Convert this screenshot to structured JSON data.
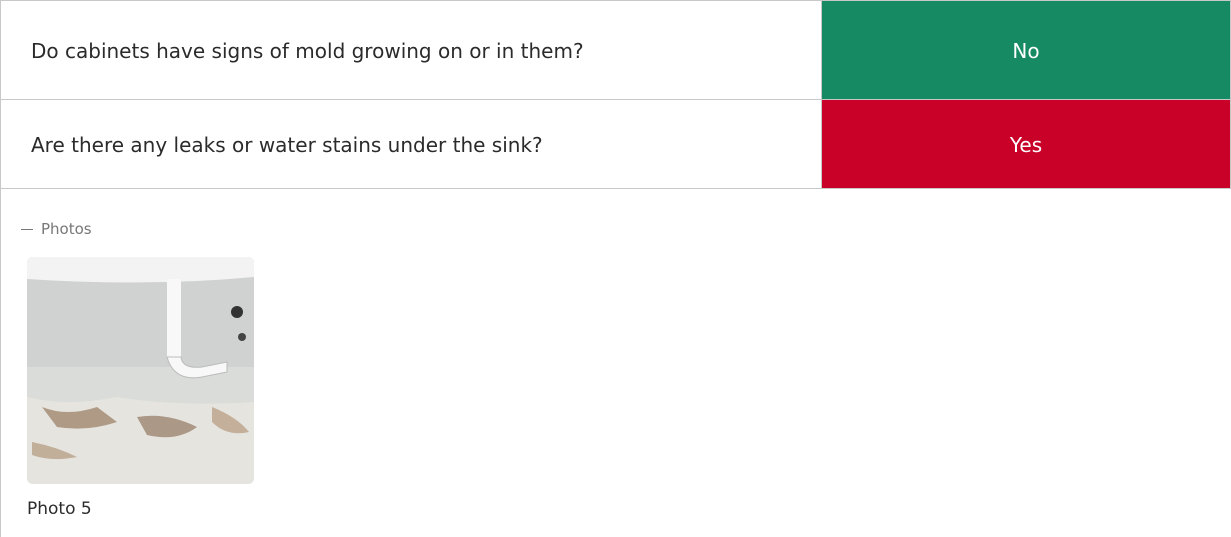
{
  "rows": [
    {
      "question": "Do cabinets have signs of mold growing on or in them?",
      "answer": "No",
      "answer_color": "#168a62"
    },
    {
      "question": "Are there any leaks or water stains under the sink?",
      "answer": "Yes",
      "answer_color": "#c90028"
    }
  ],
  "photos": {
    "label": "Photos",
    "items": [
      {
        "caption": "Photo 5"
      }
    ]
  }
}
